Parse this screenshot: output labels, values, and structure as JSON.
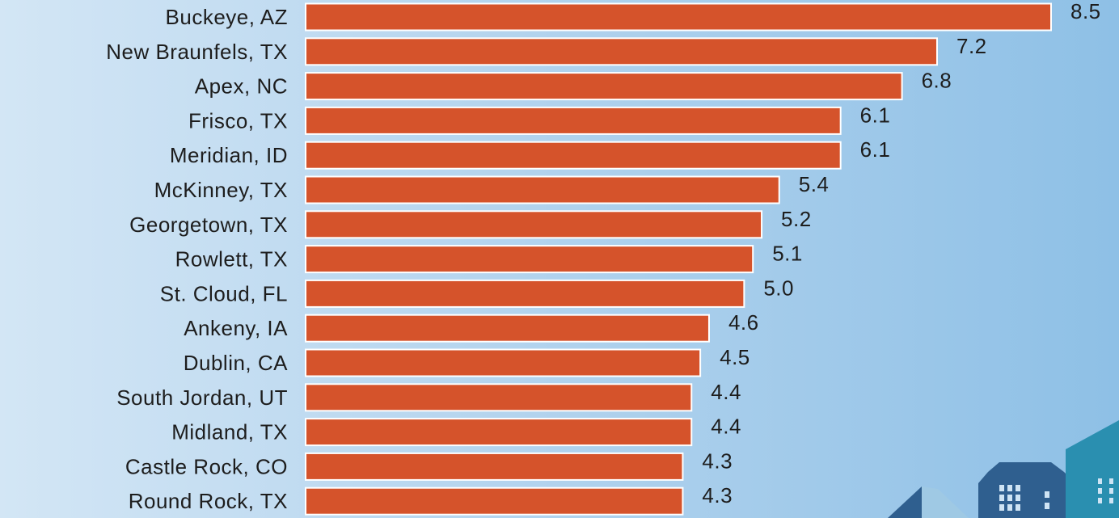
{
  "chart_data": {
    "type": "bar",
    "orientation": "horizontal",
    "categories": [
      "Buckeye, AZ",
      "New Braunfels, TX",
      "Apex, NC",
      "Frisco, TX",
      "Meridian, ID",
      "McKinney, TX",
      "Georgetown, TX",
      "Rowlett, TX",
      "St. Cloud, FL",
      "Ankeny, IA",
      "Dublin, CA",
      "South Jordan, UT",
      "Midland, TX",
      "Castle Rock, CO",
      "Round Rock, TX"
    ],
    "values": [
      8.5,
      7.2,
      6.8,
      6.1,
      6.1,
      5.4,
      5.2,
      5.1,
      5.0,
      4.6,
      4.5,
      4.4,
      4.4,
      4.3,
      4.3
    ],
    "value_labels": [
      "8.5",
      "7.2",
      "6.8",
      "6.1",
      "6.1",
      "5.4",
      "5.2",
      "5.1",
      "5.0",
      "4.6",
      "4.5",
      "4.4",
      "4.4",
      "4.3",
      "4.3"
    ],
    "title": "",
    "xlabel": "",
    "ylabel": "",
    "xlim": [
      0,
      8.5
    ],
    "grid": false,
    "legend": "none",
    "bar_color": "#d5532b",
    "text_color": "#1d1d1d"
  },
  "decoration": {
    "buildings_color_dark": "#2f5f8f",
    "buildings_color_teal": "#2a8fb0",
    "buildings_color_light": "#a8cfe8"
  }
}
